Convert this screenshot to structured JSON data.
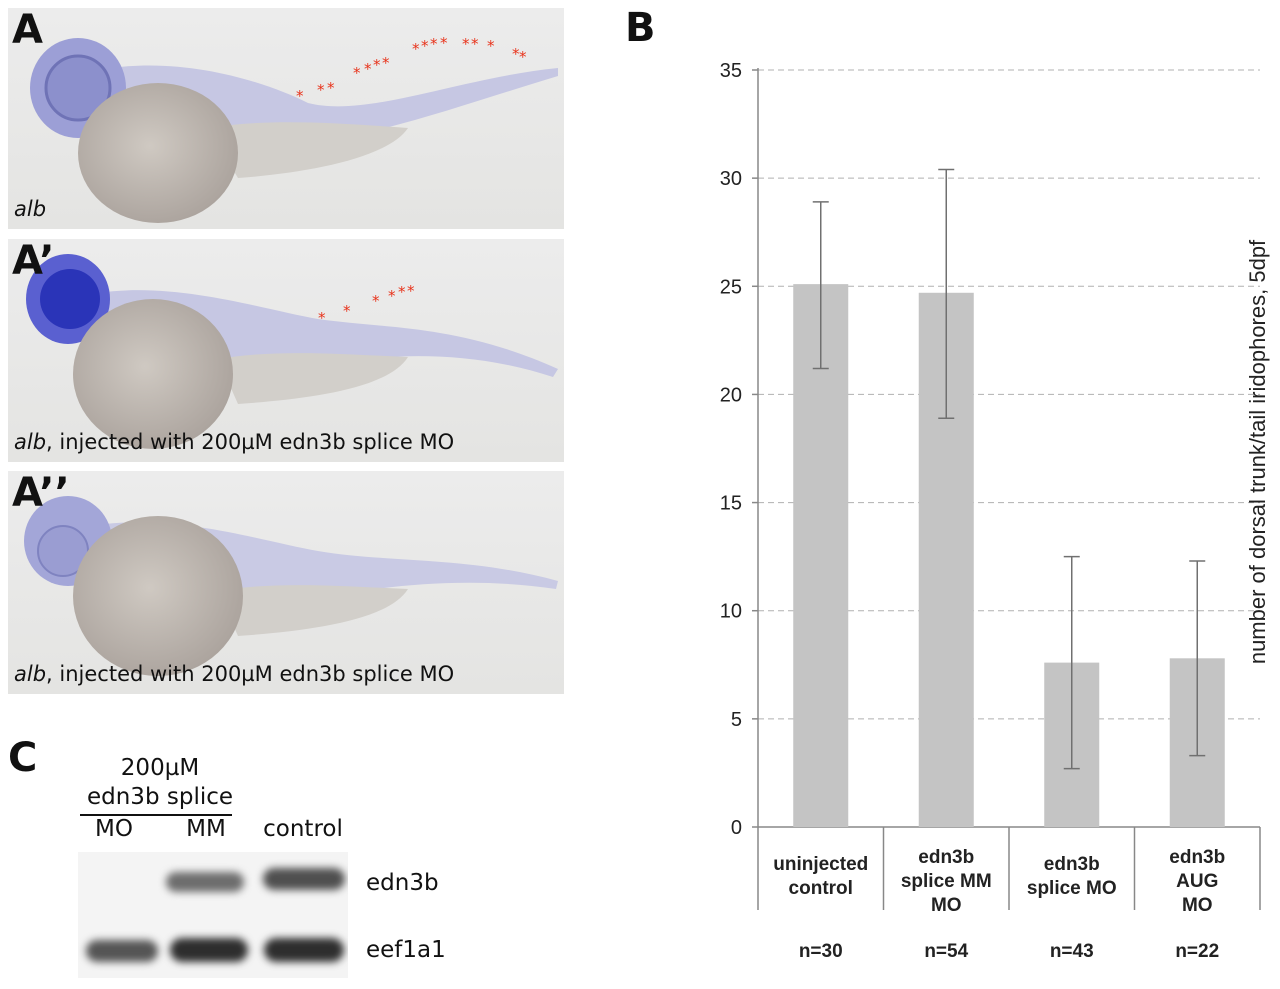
{
  "panels": {
    "a_label": "A",
    "a_prime_label": "A’",
    "a_double_label": "A’’",
    "b_label": "B",
    "c_label": "C"
  },
  "embryos": {
    "a_caption_gene": "alb",
    "a_prime_caption_gene": "alb",
    "a_prime_caption_rest": ", injected with 200µM edn3b splice MO",
    "a_double_caption_gene": "alb",
    "a_double_caption_rest": ", injected with 200µM edn3b splice MO",
    "marker_color": "#e8341c",
    "stain_color": "#3a3fc0"
  },
  "gel": {
    "header_line1": "200µM",
    "header_line2": "edn3b splice",
    "lane_mo": "MO",
    "lane_mm": "MM",
    "lane_control": "control",
    "band_edn3b": "edn3b",
    "band_eef1a1": "eef1a1"
  },
  "chart_data": {
    "type": "bar",
    "ylabel": "number of dorsal trunk/tail iridophores, 5dpf",
    "ylim": [
      0,
      35
    ],
    "yticks": [
      0,
      5,
      10,
      15,
      20,
      25,
      30,
      35
    ],
    "grid": true,
    "categories": [
      [
        "uninjected",
        "control"
      ],
      [
        "edn3b",
        "splice MM",
        "MO"
      ],
      [
        "edn3b",
        "splice MO"
      ],
      [
        "edn3b",
        "AUG",
        "MO"
      ]
    ],
    "values": [
      25.1,
      24.7,
      7.6,
      7.8
    ],
    "error_low": [
      21.2,
      18.9,
      2.7,
      3.3
    ],
    "error_high": [
      28.9,
      30.4,
      12.5,
      12.3
    ],
    "n_labels": [
      "n=30",
      "n=54",
      "n=43",
      "n=22"
    ],
    "bar_color": "#c4c4c4",
    "error_color": "#707070"
  }
}
